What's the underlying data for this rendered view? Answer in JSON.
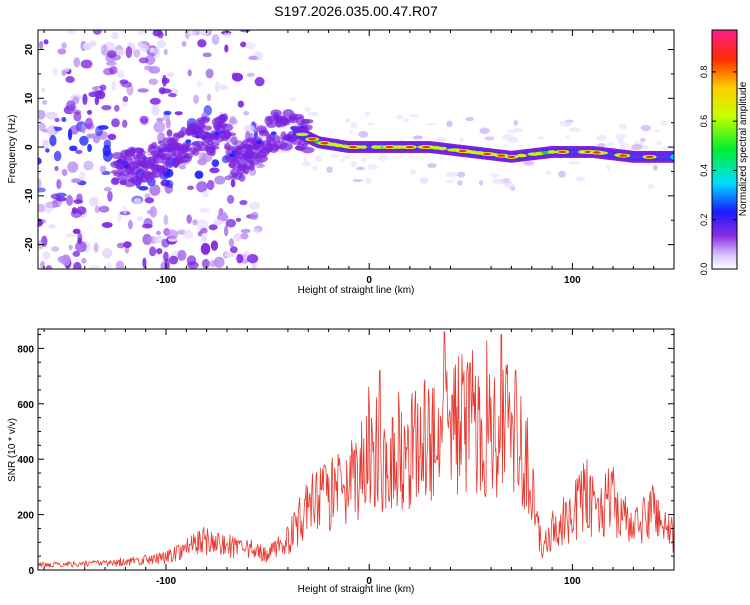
{
  "figure": {
    "title": "S197.2026.035.00.47.R07"
  },
  "chart_data": [
    {
      "type": "heatmap",
      "xlabel": "Height of straight line (km)",
      "ylabel": "Frequency (Hz)",
      "xlim": [
        -163,
        150
      ],
      "ylim": [
        -25,
        24
      ],
      "xticks": [
        -100,
        0,
        100
      ],
      "yticks": [
        -20,
        -10,
        0,
        10,
        20
      ],
      "colorbar": {
        "label": "Normalized spectral amplitude",
        "range": [
          0,
          0.97
        ],
        "ticks": [
          0.0,
          0.2,
          0.4,
          0.6,
          0.8
        ],
        "tick_labels": [
          "0.0",
          "0.2",
          "0.4",
          "0.6",
          "0.8"
        ]
      },
      "ridge": [
        {
          "x": -125,
          "y": -4
        },
        {
          "x": -110,
          "y": -4
        },
        {
          "x": -100,
          "y": -1
        },
        {
          "x": -85,
          "y": 2
        },
        {
          "x": -70,
          "y": 3
        },
        {
          "x": -65,
          "y": -4
        },
        {
          "x": -55,
          "y": 0
        },
        {
          "x": -45,
          "y": 4
        },
        {
          "x": -35,
          "y": 3
        },
        {
          "x": -25,
          "y": 1
        },
        {
          "x": -10,
          "y": 0
        },
        {
          "x": 10,
          "y": 0
        },
        {
          "x": 30,
          "y": 0
        },
        {
          "x": 50,
          "y": -1
        },
        {
          "x": 70,
          "y": -2
        },
        {
          "x": 90,
          "y": -1
        },
        {
          "x": 110,
          "y": -1
        },
        {
          "x": 130,
          "y": -2
        },
        {
          "x": 150,
          "y": -2
        }
      ]
    },
    {
      "type": "line",
      "xlabel": "Height of straight line (km)",
      "ylabel": "SNR (10 * v/v)",
      "xlim": [
        -163,
        150
      ],
      "ylim": [
        0,
        870
      ],
      "xticks": [
        -100,
        0,
        100
      ],
      "yticks": [
        0,
        200,
        400,
        600,
        800
      ],
      "series": [
        {
          "name": "SNR",
          "color": "#e8382f",
          "envelope": [
            {
              "x": -163,
              "y": 20
            },
            {
              "x": -120,
              "y": 30
            },
            {
              "x": -100,
              "y": 50
            },
            {
              "x": -90,
              "y": 90
            },
            {
              "x": -80,
              "y": 120
            },
            {
              "x": -70,
              "y": 90
            },
            {
              "x": -60,
              "y": 80
            },
            {
              "x": -50,
              "y": 60
            },
            {
              "x": -40,
              "y": 120
            },
            {
              "x": -30,
              "y": 250
            },
            {
              "x": -20,
              "y": 300
            },
            {
              "x": -10,
              "y": 300
            },
            {
              "x": 0,
              "y": 480
            },
            {
              "x": 10,
              "y": 430
            },
            {
              "x": 20,
              "y": 480
            },
            {
              "x": 30,
              "y": 530
            },
            {
              "x": 40,
              "y": 600
            },
            {
              "x": 50,
              "y": 580
            },
            {
              "x": 60,
              "y": 560
            },
            {
              "x": 70,
              "y": 600
            },
            {
              "x": 75,
              "y": 520
            },
            {
              "x": 80,
              "y": 300
            },
            {
              "x": 85,
              "y": 80
            },
            {
              "x": 90,
              "y": 150
            },
            {
              "x": 100,
              "y": 200
            },
            {
              "x": 105,
              "y": 300
            },
            {
              "x": 110,
              "y": 250
            },
            {
              "x": 120,
              "y": 280
            },
            {
              "x": 130,
              "y": 150
            },
            {
              "x": 140,
              "y": 250
            },
            {
              "x": 150,
              "y": 120
            }
          ],
          "peaks": [
            {
              "x": 37,
              "y": 860
            },
            {
              "x": 65,
              "y": 850
            },
            {
              "x": 72,
              "y": 720
            },
            {
              "x": 5,
              "y": 720
            }
          ]
        }
      ]
    }
  ]
}
